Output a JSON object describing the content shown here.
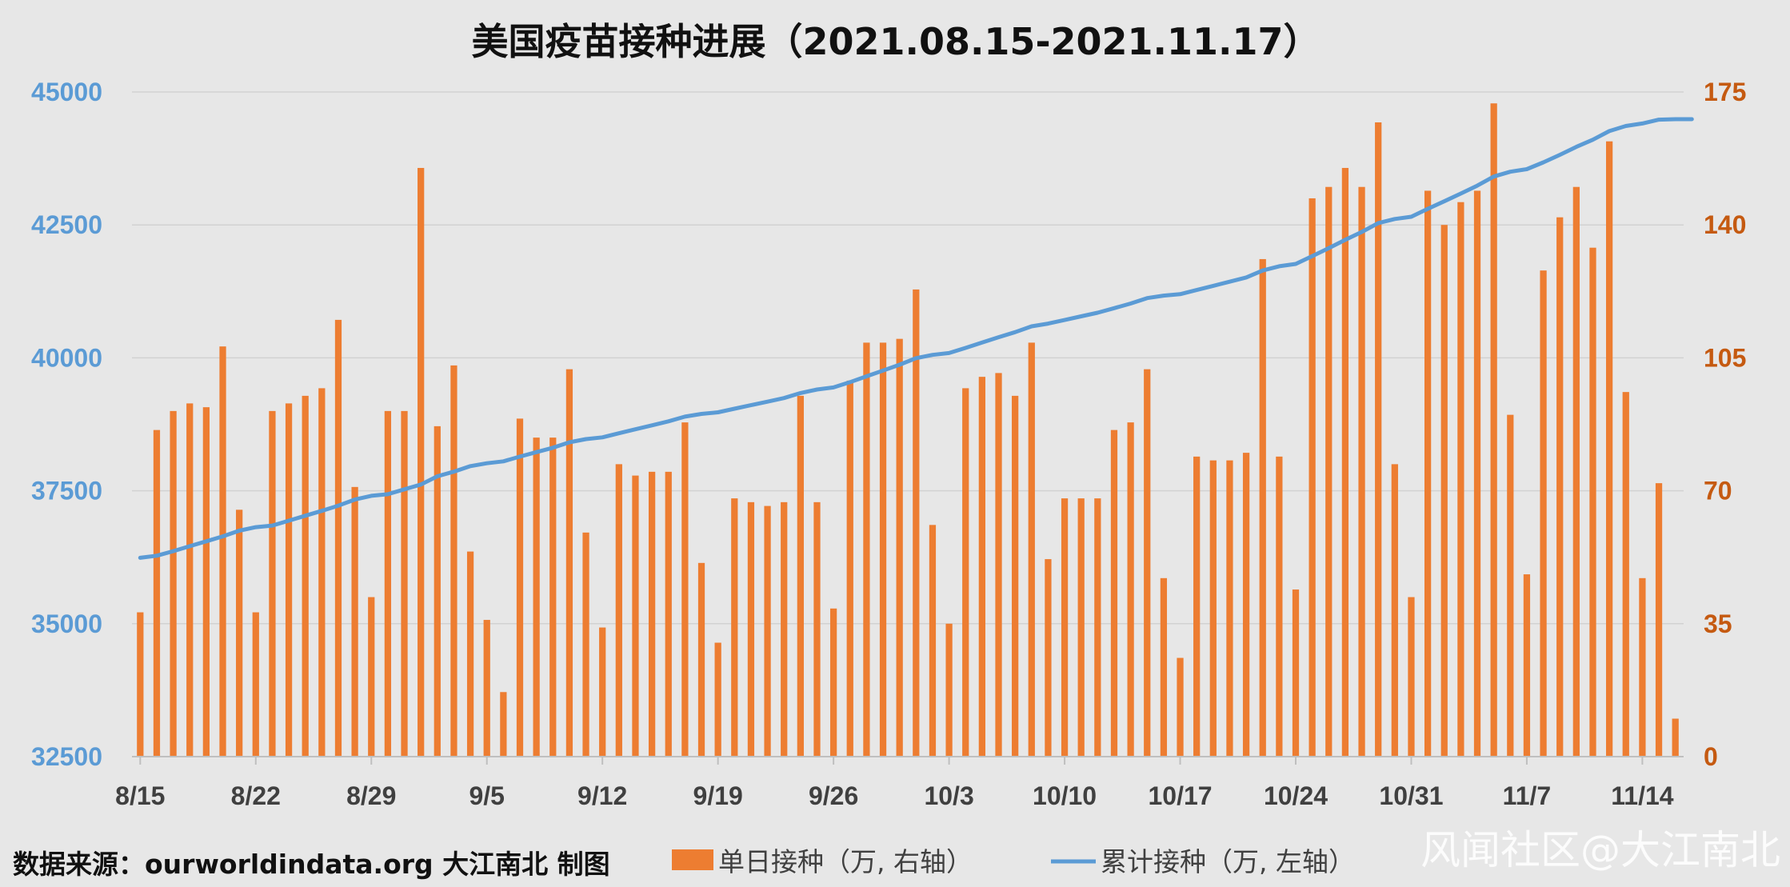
{
  "chart_data": {
    "type": "bar+line",
    "title": "美国疫苗接种进展（2021.08.15-2021.11.17）",
    "source": "数据来源：ourworldindata.org 大江南北 制图",
    "watermark": "风闻社区@大江南北",
    "x_tick_labels": [
      "8/15",
      "8/22",
      "8/29",
      "9/5",
      "9/12",
      "9/19",
      "9/26",
      "10/3",
      "10/10",
      "10/17",
      "10/24",
      "10/31",
      "11/7",
      "11/14"
    ],
    "left_axis": {
      "ticks": [
        "32500",
        "35000",
        "37500",
        "40000",
        "42500",
        "45000"
      ],
      "ylim": [
        32500,
        45000
      ]
    },
    "right_axis": {
      "ticks": [
        "0",
        "35",
        "70",
        "105",
        "140",
        "175"
      ],
      "ylim": [
        0,
        175
      ]
    },
    "grid": true,
    "legend_position": "bottom",
    "series": [
      {
        "name": "单日接种（万, 右轴）",
        "type": "bar",
        "axis": "right",
        "color": "#ed7d31",
        "values": [
          38,
          86,
          91,
          93,
          92,
          108,
          65,
          38,
          91,
          93,
          95,
          97,
          115,
          71,
          42,
          91,
          91,
          155,
          87,
          103,
          54,
          36,
          17,
          89,
          84,
          84,
          102,
          59,
          34,
          77,
          74,
          75,
          75,
          88,
          51,
          30,
          68,
          67,
          66,
          67,
          95,
          67,
          39,
          99,
          109,
          109,
          110,
          123,
          61,
          35,
          97,
          100,
          101,
          95,
          109,
          52,
          68,
          68,
          68,
          86,
          88,
          102,
          47,
          26,
          79,
          78,
          78,
          80,
          131,
          79,
          44,
          147,
          150,
          155,
          150,
          167,
          77,
          42,
          149,
          140,
          146,
          149,
          172,
          90,
          48,
          128,
          142,
          150,
          134,
          162,
          96,
          47,
          72,
          10
        ]
      },
      {
        "name": "累计接种（万, 左轴）",
        "type": "line",
        "axis": "left",
        "color": "#5b9bd5",
        "values": [
          36240,
          36279,
          36365,
          36458,
          36550,
          36642,
          36750,
          36815,
          36846,
          36937,
          37030,
          37123,
          37220,
          37335,
          37405,
          37436,
          37527,
          37618,
          37773,
          37860,
          37963,
          38017,
          38053,
          38142,
          38226,
          38310,
          38412,
          38471,
          38505,
          38582,
          38656,
          38731,
          38806,
          38894,
          38945,
          38975,
          39043,
          39110,
          39176,
          39243,
          39338,
          39405,
          39444,
          39543,
          39652,
          39761,
          39871,
          39994,
          40055,
          40090,
          40187,
          40287,
          40388,
          40483,
          40592,
          40644,
          40712,
          40780,
          40848,
          40934,
          41022,
          41124,
          41171,
          41197,
          41276,
          41354,
          41432,
          41512,
          41643,
          41722,
          41766,
          41913,
          42063,
          42218,
          42368,
          42535,
          42612,
          42654,
          42803,
          42943,
          43089,
          43238,
          43410,
          43500,
          43548,
          43676,
          43818,
          43968,
          44102,
          44264,
          44360,
          44407,
          44479,
          44489,
          44489
        ]
      }
    ]
  }
}
